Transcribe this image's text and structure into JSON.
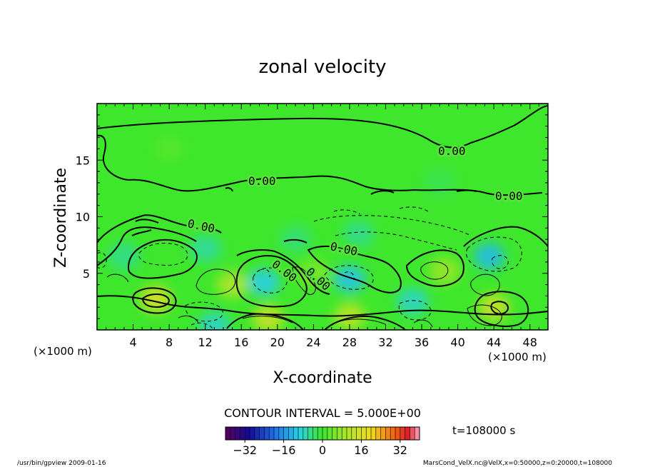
{
  "chart_data": {
    "type": "heatmap",
    "title": "zonal velocity",
    "xlabel": "X-coordinate",
    "ylabel": "Z-coordinate",
    "x_unit_label": "(×1000 m)",
    "x_unit_label_left": "(×1000 m)",
    "xlim": [
      0,
      50
    ],
    "ylim": [
      0,
      20
    ],
    "x_ticks": [
      4,
      8,
      12,
      16,
      20,
      24,
      28,
      32,
      36,
      40,
      44,
      48
    ],
    "y_ticks": [
      5,
      10,
      15
    ],
    "contour_interval_text": "CONTOUR INTERVAL = 5.000E+00",
    "contour_labels": [
      "0.00",
      "0.00",
      "0.00",
      "0.00",
      "0.00",
      "0.00",
      "0.00"
    ],
    "colorbar": {
      "min": -40,
      "max": 40,
      "ticks": [
        -32,
        -16,
        0,
        16,
        32
      ],
      "tick_labels": [
        "−32",
        "−16",
        "0",
        "16",
        "32"
      ]
    },
    "time_text": "t=108000 s",
    "footer_left": "/usr/bin/gpview   2009-01-16",
    "footer_right": "MarsCond_VelX.nc@VelX,x=0:50000,z=0:20000,t=108000",
    "field_features": [
      {
        "x": 3.0,
        "z": 6.5,
        "value": -5
      },
      {
        "x": 6.5,
        "z": 2.7,
        "value": 16
      },
      {
        "x": 12.0,
        "z": 7.2,
        "value": -6
      },
      {
        "x": 13.0,
        "z": 0.4,
        "value": -8
      },
      {
        "x": 15.0,
        "z": 4.0,
        "value": 10
      },
      {
        "x": 18.5,
        "z": 4.2,
        "value": -10
      },
      {
        "x": 19.0,
        "z": 1.0,
        "value": 14
      },
      {
        "x": 22.0,
        "z": 8.0,
        "value": -4
      },
      {
        "x": 24.0,
        "z": 5.0,
        "value": 6
      },
      {
        "x": 28.0,
        "z": 4.5,
        "value": -11
      },
      {
        "x": 28.0,
        "z": 1.2,
        "value": 12
      },
      {
        "x": 29.0,
        "z": 8.5,
        "value": -5
      },
      {
        "x": 35.0,
        "z": 2.5,
        "value": -8
      },
      {
        "x": 38.5,
        "z": 5.2,
        "value": 8
      },
      {
        "x": 43.5,
        "z": 6.5,
        "value": -12
      },
      {
        "x": 44.0,
        "z": 2.0,
        "value": 14
      },
      {
        "x": 38.0,
        "z": 13.0,
        "value": -2
      },
      {
        "x": 8.0,
        "z": 16.0,
        "value": 2
      }
    ]
  }
}
